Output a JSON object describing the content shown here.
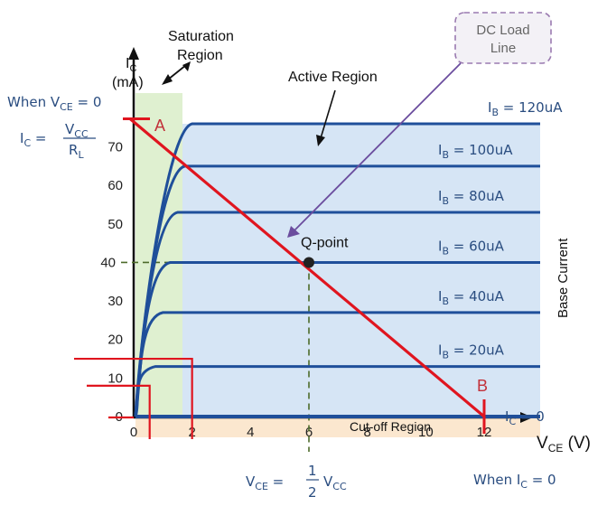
{
  "colors": {
    "curve": "#1f4f9a",
    "load_line": "#e0151f",
    "active_fill": "#cfe0f3",
    "saturation_fill": "#dff0d0",
    "cutoff_fill": "#fbe7cf",
    "dashed": "#4d6b2a",
    "arrow": "#6b4d9e",
    "dc_box_border": "#9a7ab0",
    "annotation_text": "#2a4d80"
  },
  "chart_data": {
    "type": "line",
    "xlim": [
      0,
      12
    ],
    "ylim": [
      0,
      80
    ],
    "x_ticks": [
      "0",
      "2",
      "4",
      "6",
      "8",
      "10",
      "12"
    ],
    "y_ticks": [
      "0",
      "10",
      "20",
      "30",
      "40",
      "50",
      "60",
      "70"
    ],
    "x_axis_label": "V",
    "x_axis_label_sub": "CE",
    "x_axis_label_unit": " (V)",
    "y_axis_label": "I",
    "y_axis_label_sub": "C",
    "y_axis_label_unit": "(mA)",
    "right_axis_label": "Base Current",
    "series": [
      {
        "name": "IB = 120uA",
        "label_main": "I",
        "label_sub": "B",
        "label_rest": " = 120uA",
        "ic": 76
      },
      {
        "name": "IB = 100uA",
        "label_main": "I",
        "label_sub": "B",
        "label_rest": " = 100uA",
        "ic": 65
      },
      {
        "name": "IB = 80uA",
        "label_main": "I",
        "label_sub": "B",
        "label_rest": " = 80uA",
        "ic": 53
      },
      {
        "name": "IB = 60uA",
        "label_main": "I",
        "label_sub": "B",
        "label_rest": " = 60uA",
        "ic": 40
      },
      {
        "name": "IB = 40uA",
        "label_main": "I",
        "label_sub": "B",
        "label_rest": " = 40uA",
        "ic": 27
      },
      {
        "name": "IB = 20uA",
        "label_main": "I",
        "label_sub": "B",
        "label_rest": " = 20uA",
        "ic": 13
      },
      {
        "name": "IC = 0",
        "label_main": "I",
        "label_sub": "C",
        "label_rest": " = 0",
        "ic": 0
      }
    ],
    "load_line": {
      "from": [
        0,
        78
      ],
      "to": [
        12,
        0
      ]
    },
    "q_point": {
      "vce": 6,
      "ic": 40,
      "label": "Q-point"
    },
    "point_a": {
      "label": "A",
      "vce": 0,
      "ic": 78
    },
    "point_b": {
      "label": "B",
      "vce": 12,
      "ic": 0
    },
    "highlight_y_tick": "40",
    "highlight_x_tick": "6",
    "saturation_box_small": {
      "vce": 0.3,
      "ic": 8
    },
    "saturation_box_large": {
      "vce": 2,
      "ic": 15
    }
  },
  "annotations": {
    "saturation_region": [
      "Saturation",
      "Region"
    ],
    "active_region": "Active Region",
    "cutoff_region": "Cut-off Region",
    "dc_load_line": [
      "DC Load",
      "Line"
    ],
    "when_vce_zero": {
      "pre": "When V",
      "sub": "CE",
      "post": " = 0"
    },
    "when_ic_zero": {
      "pre": "When I",
      "sub": "C",
      "post": " = 0"
    },
    "ic_formula": {
      "lhs": "I",
      "lhs_sub": "C",
      "eq": " = ",
      "num": "V",
      "num_sub": "CC",
      "den": "R",
      "den_sub": "L"
    },
    "vce_formula": {
      "lhs": "V",
      "lhs_sub": "CE",
      "eq": " = ",
      "num": "1",
      "den": "2",
      "rhs": "V",
      "rhs_sub": "CC"
    }
  }
}
